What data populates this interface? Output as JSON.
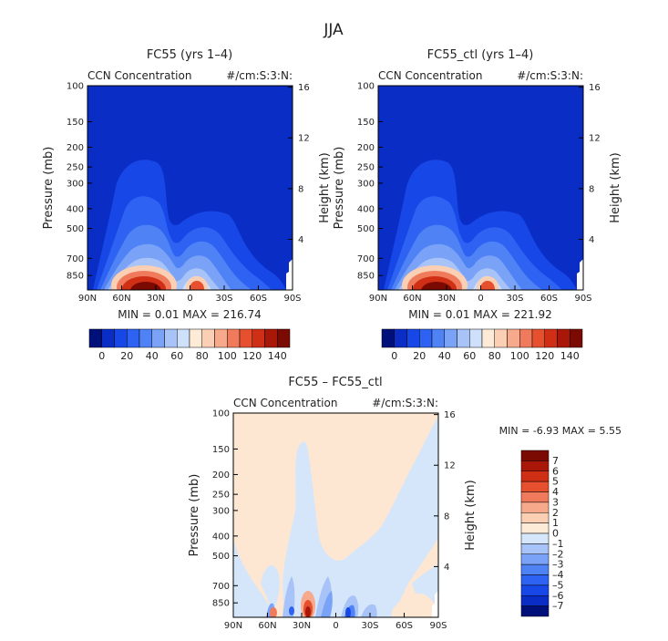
{
  "season_title": "JJA",
  "panels": [
    {
      "title": "FC55 (yrs 1–4)",
      "left_label": "CCN Concentration",
      "right_label": "#/cm:S:3:N:",
      "stats": "MIN =   0.01   MAX = 216.74"
    },
    {
      "title": "FC55_ctl (yrs 1–4)",
      "left_label": "CCN Concentration",
      "right_label": "#/cm:S:3:N:",
      "stats": "MIN =   0.01   MAX = 221.92"
    },
    {
      "title": "FC55 – FC55_ctl",
      "left_label": "CCN Concentration",
      "right_label": "#/cm:S:3:N:",
      "stats": "MIN =   -6.93   MAX =    5.55"
    }
  ],
  "chart_data": [
    {
      "type": "heatmap",
      "title": "FC55 (yrs 1–4)",
      "ylabel": "Pressure (mb)",
      "y2label": "Height (km)",
      "x_ticks": [
        "90N",
        "60N",
        "30N",
        "0",
        "30S",
        "60S",
        "90S"
      ],
      "y_ticks": [
        "100",
        "150",
        "200",
        "250",
        "300",
        "400",
        "500",
        "700",
        "850"
      ],
      "y2_ticks": [
        "16",
        "12",
        "8",
        "4"
      ],
      "min": 0.01,
      "max": 216.74,
      "colorbar_labels": [
        "0",
        "20",
        "40",
        "60",
        "80",
        "100",
        "120",
        "140"
      ],
      "colors": [
        "#00107a",
        "#0a2ec5",
        "#1747e6",
        "#2e62f2",
        "#4f82f5",
        "#7aa3f7",
        "#a7c3f8",
        "#cfe0fa",
        "#fdebd8",
        "#fbcfb3",
        "#f6a98b",
        "#f07b5c",
        "#e6502f",
        "#cf2f14",
        "#a91708",
        "#7a0a02"
      ]
    },
    {
      "type": "heatmap",
      "title": "FC55_ctl (yrs 1–4)",
      "ylabel": "Pressure (mb)",
      "y2label": "Height (km)",
      "x_ticks": [
        "90N",
        "60N",
        "30N",
        "0",
        "30S",
        "60S",
        "90S"
      ],
      "y_ticks": [
        "100",
        "150",
        "200",
        "250",
        "300",
        "400",
        "500",
        "700",
        "850"
      ],
      "y2_ticks": [
        "16",
        "12",
        "8",
        "4"
      ],
      "min": 0.01,
      "max": 221.92,
      "colorbar_labels": [
        "0",
        "20",
        "40",
        "60",
        "80",
        "100",
        "120",
        "140"
      ],
      "colors": [
        "#00107a",
        "#0a2ec5",
        "#1747e6",
        "#2e62f2",
        "#4f82f5",
        "#7aa3f7",
        "#a7c3f8",
        "#cfe0fa",
        "#fdebd8",
        "#fbcfb3",
        "#f6a98b",
        "#f07b5c",
        "#e6502f",
        "#cf2f14",
        "#a91708",
        "#7a0a02"
      ]
    },
    {
      "type": "heatmap",
      "title": "FC55 – FC55_ctl",
      "ylabel": "Pressure (mb)",
      "y2label": "Height (km)",
      "x_ticks": [
        "90N",
        "60N",
        "30N",
        "0",
        "30S",
        "60S",
        "90S"
      ],
      "y_ticks": [
        "100",
        "150",
        "200",
        "250",
        "300",
        "400",
        "500",
        "700",
        "850"
      ],
      "y2_ticks": [
        "16",
        "12",
        "8",
        "4"
      ],
      "min": -6.93,
      "max": 5.55,
      "colorbar_labels": [
        "7",
        "6",
        "5",
        "4",
        "3",
        "2",
        "1",
        "0",
        "–1",
        "–2",
        "–3",
        "–4",
        "–5",
        "–6",
        "–7"
      ],
      "colors": [
        "#7a0a02",
        "#a91708",
        "#cf2f14",
        "#e6502f",
        "#f07b5c",
        "#f6a98b",
        "#fbcfb3",
        "#fdebd8",
        "#d5e6fb",
        "#a7c3f8",
        "#7aa3f7",
        "#4f82f5",
        "#2e62f2",
        "#1747e6",
        "#0a2ec5",
        "#00107a"
      ]
    }
  ]
}
